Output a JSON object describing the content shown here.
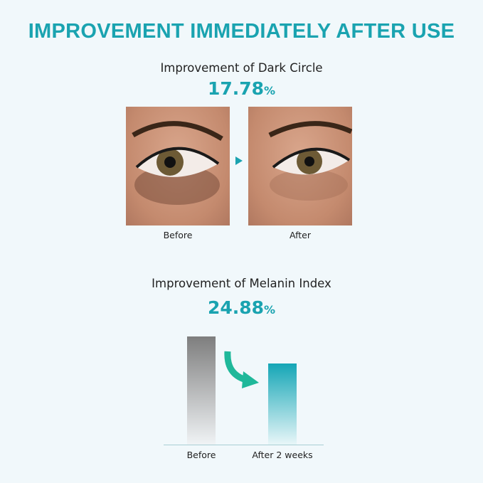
{
  "title": "IMPROVEMENT IMMEDIATELY AFTER USE",
  "dark_circle": {
    "label": "Improvement of Dark Circle",
    "value": "17.78",
    "unit": "%",
    "before_label": "Before",
    "after_label": "After"
  },
  "melanin": {
    "label": "Improvement of Melanin Index",
    "value": "24.88",
    "unit": "%"
  },
  "chart_data": {
    "type": "bar",
    "categories": [
      "Before",
      "After 2 weeks"
    ],
    "values": [
      100,
      75.12
    ],
    "ylim": [
      0,
      100
    ],
    "colors": [
      "#808080",
      "#16a5b5"
    ],
    "grid": false
  },
  "colors": {
    "accent": "#1aa3b0",
    "arrow": "#1fb89a"
  }
}
